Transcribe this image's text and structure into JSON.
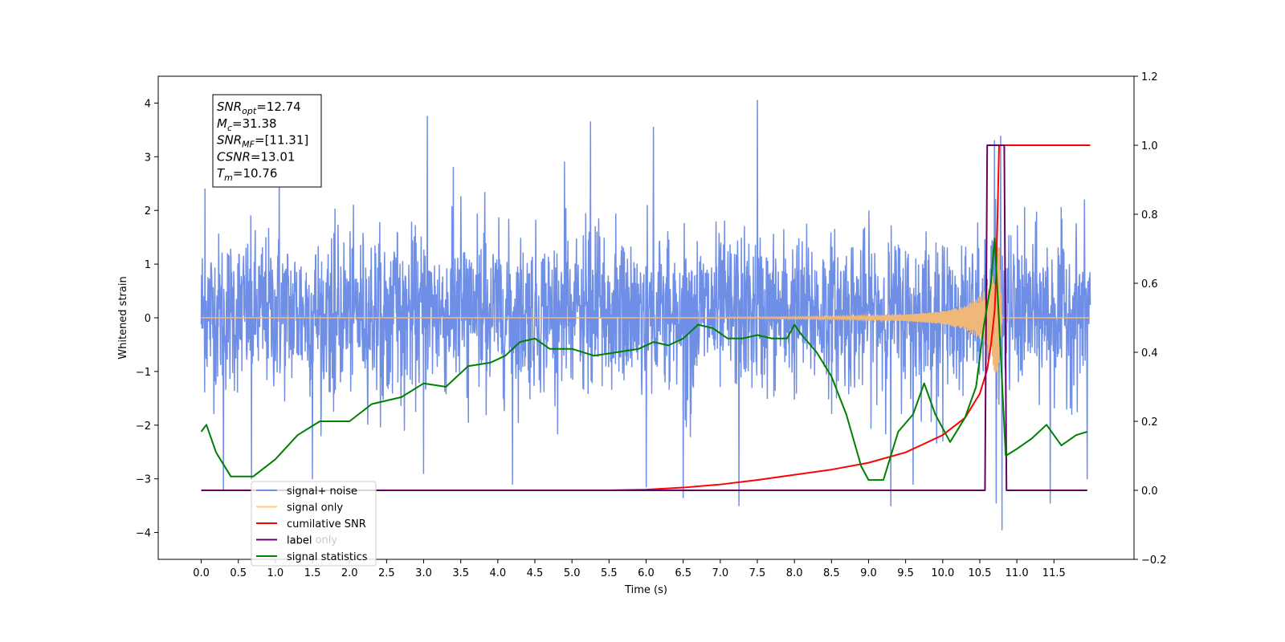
{
  "chart_data": {
    "type": "line",
    "title": "",
    "xlabel": "Time (s)",
    "ylabel": "Whitened strain",
    "y2label": "",
    "xlim": [
      -0.58,
      12.58
    ],
    "ylim": [
      -4.5,
      4.5
    ],
    "y2lim": [
      -0.2,
      1.2
    ],
    "x_ticks": [
      0.0,
      0.5,
      1.0,
      1.5,
      2.0,
      2.5,
      3.0,
      3.5,
      4.0,
      4.5,
      5.0,
      5.5,
      6.0,
      6.5,
      7.0,
      7.5,
      8.0,
      8.5,
      9.0,
      9.5,
      10.0,
      10.5,
      11.0,
      11.5
    ],
    "x_tick_labels": [
      "0.0",
      "0.5",
      "1.0",
      "1.5",
      "2.0",
      "2.5",
      "3.0",
      "3.5",
      "4.0",
      "4.5",
      "5.0",
      "5.5",
      "6.0",
      "6.5",
      "7.0",
      "7.5",
      "8.0",
      "8.5",
      "9.0",
      "9.5",
      "10.0",
      "10.5",
      "11.0",
      "11.5"
    ],
    "y_ticks": [
      -4,
      -3,
      -2,
      -1,
      0,
      1,
      2,
      3,
      4
    ],
    "y_tick_labels": [
      "−4",
      "−3",
      "−2",
      "−1",
      "0",
      "1",
      "2",
      "3",
      "4"
    ],
    "y2_ticks": [
      -0.2,
      0.0,
      0.2,
      0.4,
      0.6,
      0.8,
      1.0,
      1.2
    ],
    "y2_tick_labels": [
      "−0.2",
      "0.0",
      "0.2",
      "0.4",
      "0.6",
      "0.8",
      "1.0",
      "1.2"
    ],
    "grid": false,
    "legend_placement": "lower-left",
    "legend": [
      {
        "label": "signal+ noise",
        "color": "#6f8ee6"
      },
      {
        "label": "signal only",
        "color": "#ffcc80"
      },
      {
        "label": "cumilative SNR",
        "color": "#ff0000"
      },
      {
        "label": "label",
        "color": "#660066"
      },
      {
        "label": "signal statistics",
        "color": "#008000"
      }
    ],
    "hidden_legend_fragments": [
      "label only",
      "signal statistics"
    ],
    "annotation": {
      "lines": [
        {
          "base": "SNR",
          "sub": "opt",
          "rest": "=12.74"
        },
        {
          "base": "M",
          "sub": "c",
          "rest": "=31.38"
        },
        {
          "base": "SNR",
          "sub": "MF",
          "rest": "=[11.31]"
        },
        {
          "base": "CSNR",
          "sub": "",
          "rest": "=13.01"
        },
        {
          "base": "T",
          "sub": "m",
          "rest": "=10.76"
        }
      ]
    },
    "series": [
      {
        "name": "signal+ noise",
        "axis": "left",
        "color": "#6f8ee6",
        "x_range": [
          0.0,
          11.99
        ],
        "typical_range": [
          -2.0,
          2.2
        ],
        "peaks": [
          {
            "x": 0.05,
            "y": 2.4
          },
          {
            "x": 0.3,
            "y": -3.2
          },
          {
            "x": 0.68,
            "y": -3.0
          },
          {
            "x": 1.05,
            "y": 2.7
          },
          {
            "x": 1.5,
            "y": -3.0
          },
          {
            "x": 3.0,
            "y": -2.9
          },
          {
            "x": 3.05,
            "y": 3.75
          },
          {
            "x": 3.4,
            "y": 2.8
          },
          {
            "x": 4.2,
            "y": -3.1
          },
          {
            "x": 4.9,
            "y": 2.9
          },
          {
            "x": 5.25,
            "y": 3.65
          },
          {
            "x": 6.0,
            "y": -3.15
          },
          {
            "x": 6.1,
            "y": 3.55
          },
          {
            "x": 6.5,
            "y": -3.35
          },
          {
            "x": 7.25,
            "y": -3.5
          },
          {
            "x": 7.5,
            "y": 4.05
          },
          {
            "x": 9.3,
            "y": -3.5
          },
          {
            "x": 9.6,
            "y": -3.1
          },
          {
            "x": 10.7,
            "y": 3.3
          },
          {
            "x": 10.72,
            "y": -3.45
          },
          {
            "x": 10.78,
            "y": 3.38
          },
          {
            "x": 10.8,
            "y": -3.95
          },
          {
            "x": 11.45,
            "y": -3.45
          },
          {
            "x": 11.95,
            "y": -3.0
          }
        ]
      },
      {
        "name": "signal only",
        "axis": "left",
        "color": "#f0b878",
        "x": [
          0.0,
          2.0,
          4.0,
          6.0,
          8.0,
          9.0,
          9.5,
          10.0,
          10.3,
          10.5,
          10.6,
          10.7,
          10.76,
          10.8,
          11.99
        ],
        "envelope": [
          0.0,
          0.0,
          0.0,
          0.0,
          0.02,
          0.04,
          0.06,
          0.12,
          0.22,
          0.4,
          0.6,
          1.0,
          1.4,
          0.0,
          0.0
        ]
      },
      {
        "name": "cumilative SNR",
        "axis": "right",
        "color": "#ff0000",
        "x": [
          0.0,
          5.5,
          6.0,
          6.5,
          7.0,
          7.5,
          8.0,
          8.5,
          9.0,
          9.5,
          10.0,
          10.3,
          10.5,
          10.6,
          10.65,
          10.7,
          10.72,
          10.74,
          10.76,
          10.8,
          11.99
        ],
        "y": [
          0.0,
          0.0,
          0.002,
          0.008,
          0.017,
          0.03,
          0.045,
          0.06,
          0.08,
          0.11,
          0.16,
          0.21,
          0.28,
          0.35,
          0.42,
          0.52,
          0.62,
          0.8,
          1.0,
          1.0,
          1.0
        ]
      },
      {
        "name": "label",
        "axis": "right",
        "color": "#660066",
        "x": [
          0.0,
          10.57,
          10.6,
          10.83,
          10.86,
          11.95
        ],
        "y": [
          0.0,
          0.0,
          1.0,
          1.0,
          0.0,
          0.0
        ]
      },
      {
        "name": "signal statistics",
        "axis": "right",
        "color": "#008000",
        "x": [
          0.0,
          0.07,
          0.2,
          0.4,
          0.7,
          1.0,
          1.3,
          1.6,
          2.0,
          2.3,
          2.7,
          3.0,
          3.3,
          3.6,
          3.9,
          4.1,
          4.3,
          4.5,
          4.7,
          5.0,
          5.3,
          5.6,
          5.9,
          6.1,
          6.3,
          6.5,
          6.7,
          6.9,
          7.1,
          7.3,
          7.5,
          7.7,
          7.9,
          8.0,
          8.1,
          8.3,
          8.5,
          8.7,
          8.9,
          9.0,
          9.2,
          9.4,
          9.6,
          9.75,
          9.9,
          10.1,
          10.3,
          10.45,
          10.55,
          10.65,
          10.7,
          10.75,
          10.85,
          11.0,
          11.2,
          11.4,
          11.6,
          11.8,
          11.95
        ],
        "y": [
          0.17,
          0.19,
          0.11,
          0.04,
          0.04,
          0.09,
          0.16,
          0.2,
          0.2,
          0.25,
          0.27,
          0.31,
          0.3,
          0.36,
          0.37,
          0.39,
          0.43,
          0.44,
          0.41,
          0.41,
          0.39,
          0.4,
          0.41,
          0.43,
          0.42,
          0.44,
          0.48,
          0.47,
          0.44,
          0.44,
          0.45,
          0.44,
          0.44,
          0.48,
          0.45,
          0.4,
          0.33,
          0.22,
          0.07,
          0.03,
          0.03,
          0.17,
          0.22,
          0.31,
          0.22,
          0.14,
          0.21,
          0.3,
          0.47,
          0.6,
          0.73,
          0.53,
          0.1,
          0.12,
          0.15,
          0.19,
          0.13,
          0.16,
          0.17
        ]
      }
    ]
  }
}
